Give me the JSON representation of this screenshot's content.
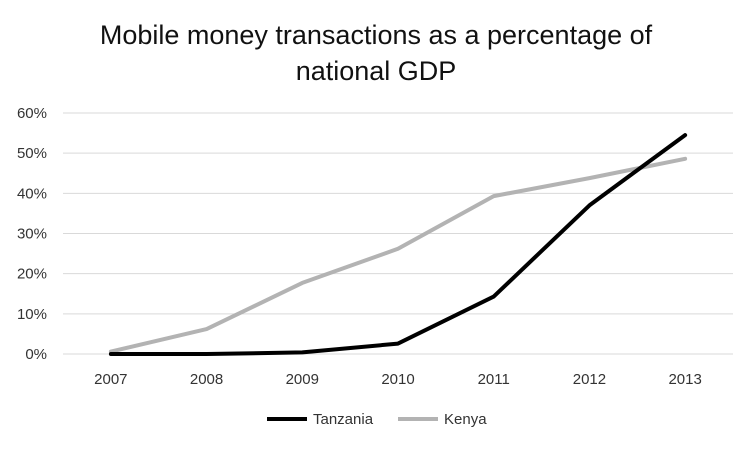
{
  "chart_data": {
    "type": "line",
    "title_lines": [
      "Mobile money transactions as a percentage of",
      "national GDP"
    ],
    "xlabel": "",
    "ylabel": "",
    "x": [
      "2007",
      "2008",
      "2009",
      "2010",
      "2011",
      "2012",
      "2013"
    ],
    "y_ticks": [
      "0%",
      "10%",
      "20%",
      "30%",
      "40%",
      "50%",
      "60%"
    ],
    "ylim": [
      0,
      60
    ],
    "grid": true,
    "legend_position": "bottom",
    "series": [
      {
        "name": "Tanzania",
        "color": "#000000",
        "values": [
          0,
          0,
          0.4,
          2.6,
          14.3,
          37,
          54.5
        ]
      },
      {
        "name": "Kenya",
        "color": "#b3b3b3",
        "values": [
          0.6,
          6.2,
          17.7,
          26.2,
          39.3,
          43.8,
          48.6
        ]
      }
    ]
  }
}
